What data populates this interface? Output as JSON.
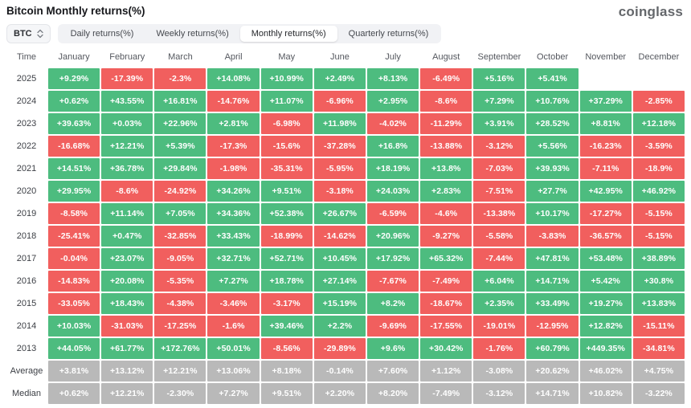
{
  "page": {
    "title": "Bitcoin Monthly returns(%)",
    "logo": "coinglass"
  },
  "toolbar": {
    "symbol_selector": "BTC",
    "tabs": [
      {
        "label": "Daily returns(%)",
        "active": false
      },
      {
        "label": "Weekly returns(%)",
        "active": false
      },
      {
        "label": "Monthly returns(%)",
        "active": true
      },
      {
        "label": "Quarterly returns(%)",
        "active": false
      }
    ]
  },
  "colors": {
    "positive": "#4dbc7f",
    "negative": "#f15f5e",
    "summary": "#b9b9b9"
  },
  "table": {
    "columns": [
      "Time",
      "January",
      "February",
      "March",
      "April",
      "May",
      "June",
      "July",
      "August",
      "September",
      "October",
      "November",
      "December"
    ],
    "rows": [
      {
        "label": "2025",
        "summary": false,
        "values": [
          "+9.29%",
          "-17.39%",
          "-2.3%",
          "+14.08%",
          "+10.99%",
          "+2.49%",
          "+8.13%",
          "-6.49%",
          "+5.16%",
          "+5.41%",
          "",
          ""
        ]
      },
      {
        "label": "2024",
        "summary": false,
        "values": [
          "+0.62%",
          "+43.55%",
          "+16.81%",
          "-14.76%",
          "+11.07%",
          "-6.96%",
          "+2.95%",
          "-8.6%",
          "+7.29%",
          "+10.76%",
          "+37.29%",
          "-2.85%"
        ]
      },
      {
        "label": "2023",
        "summary": false,
        "values": [
          "+39.63%",
          "+0.03%",
          "+22.96%",
          "+2.81%",
          "-6.98%",
          "+11.98%",
          "-4.02%",
          "-11.29%",
          "+3.91%",
          "+28.52%",
          "+8.81%",
          "+12.18%"
        ]
      },
      {
        "label": "2022",
        "summary": false,
        "values": [
          "-16.68%",
          "+12.21%",
          "+5.39%",
          "-17.3%",
          "-15.6%",
          "-37.28%",
          "+16.8%",
          "-13.88%",
          "-3.12%",
          "+5.56%",
          "-16.23%",
          "-3.59%"
        ]
      },
      {
        "label": "2021",
        "summary": false,
        "values": [
          "+14.51%",
          "+36.78%",
          "+29.84%",
          "-1.98%",
          "-35.31%",
          "-5.95%",
          "+18.19%",
          "+13.8%",
          "-7.03%",
          "+39.93%",
          "-7.11%",
          "-18.9%"
        ]
      },
      {
        "label": "2020",
        "summary": false,
        "values": [
          "+29.95%",
          "-8.6%",
          "-24.92%",
          "+34.26%",
          "+9.51%",
          "-3.18%",
          "+24.03%",
          "+2.83%",
          "-7.51%",
          "+27.7%",
          "+42.95%",
          "+46.92%"
        ]
      },
      {
        "label": "2019",
        "summary": false,
        "values": [
          "-8.58%",
          "+11.14%",
          "+7.05%",
          "+34.36%",
          "+52.38%",
          "+26.67%",
          "-6.59%",
          "-4.6%",
          "-13.38%",
          "+10.17%",
          "-17.27%",
          "-5.15%"
        ]
      },
      {
        "label": "2018",
        "summary": false,
        "values": [
          "-25.41%",
          "+0.47%",
          "-32.85%",
          "+33.43%",
          "-18.99%",
          "-14.62%",
          "+20.96%",
          "-9.27%",
          "-5.58%",
          "-3.83%",
          "-36.57%",
          "-5.15%"
        ]
      },
      {
        "label": "2017",
        "summary": false,
        "values": [
          "-0.04%",
          "+23.07%",
          "-9.05%",
          "+32.71%",
          "+52.71%",
          "+10.45%",
          "+17.92%",
          "+65.32%",
          "-7.44%",
          "+47.81%",
          "+53.48%",
          "+38.89%"
        ]
      },
      {
        "label": "2016",
        "summary": false,
        "values": [
          "-14.83%",
          "+20.08%",
          "-5.35%",
          "+7.27%",
          "+18.78%",
          "+27.14%",
          "-7.67%",
          "-7.49%",
          "+6.04%",
          "+14.71%",
          "+5.42%",
          "+30.8%"
        ]
      },
      {
        "label": "2015",
        "summary": false,
        "values": [
          "-33.05%",
          "+18.43%",
          "-4.38%",
          "-3.46%",
          "-3.17%",
          "+15.19%",
          "+8.2%",
          "-18.67%",
          "+2.35%",
          "+33.49%",
          "+19.27%",
          "+13.83%"
        ]
      },
      {
        "label": "2014",
        "summary": false,
        "values": [
          "+10.03%",
          "-31.03%",
          "-17.25%",
          "-1.6%",
          "+39.46%",
          "+2.2%",
          "-9.69%",
          "-17.55%",
          "-19.01%",
          "-12.95%",
          "+12.82%",
          "-15.11%"
        ]
      },
      {
        "label": "2013",
        "summary": false,
        "values": [
          "+44.05%",
          "+61.77%",
          "+172.76%",
          "+50.01%",
          "-8.56%",
          "-29.89%",
          "+9.6%",
          "+30.42%",
          "-1.76%",
          "+60.79%",
          "+449.35%",
          "-34.81%"
        ]
      },
      {
        "label": "Average",
        "summary": true,
        "values": [
          "+3.81%",
          "+13.12%",
          "+12.21%",
          "+13.06%",
          "+8.18%",
          "-0.14%",
          "+7.60%",
          "+1.12%",
          "-3.08%",
          "+20.62%",
          "+46.02%",
          "+4.75%"
        ]
      },
      {
        "label": "Median",
        "summary": true,
        "values": [
          "+0.62%",
          "+12.21%",
          "-2.30%",
          "+7.27%",
          "+9.51%",
          "+2.20%",
          "+8.20%",
          "-7.49%",
          "-3.12%",
          "+14.71%",
          "+10.82%",
          "-3.22%"
        ]
      }
    ]
  },
  "chart_data": {
    "type": "heatmap",
    "title": "Bitcoin Monthly returns(%)",
    "x_categories": [
      "January",
      "February",
      "March",
      "April",
      "May",
      "June",
      "July",
      "August",
      "September",
      "October",
      "November",
      "December"
    ],
    "y_categories": [
      "2025",
      "2024",
      "2023",
      "2022",
      "2021",
      "2020",
      "2019",
      "2018",
      "2017",
      "2016",
      "2015",
      "2014",
      "2013",
      "Average",
      "Median"
    ],
    "values_pct": [
      [
        9.29,
        -17.39,
        -2.3,
        14.08,
        10.99,
        2.49,
        8.13,
        -6.49,
        5.16,
        5.41,
        null,
        null
      ],
      [
        0.62,
        43.55,
        16.81,
        -14.76,
        11.07,
        -6.96,
        2.95,
        -8.6,
        7.29,
        10.76,
        37.29,
        -2.85
      ],
      [
        39.63,
        0.03,
        22.96,
        2.81,
        -6.98,
        11.98,
        -4.02,
        -11.29,
        3.91,
        28.52,
        8.81,
        12.18
      ],
      [
        -16.68,
        12.21,
        5.39,
        -17.3,
        -15.6,
        -37.28,
        16.8,
        -13.88,
        -3.12,
        5.56,
        -16.23,
        -3.59
      ],
      [
        14.51,
        36.78,
        29.84,
        -1.98,
        -35.31,
        -5.95,
        18.19,
        13.8,
        -7.03,
        39.93,
        -7.11,
        -18.9
      ],
      [
        29.95,
        -8.6,
        -24.92,
        34.26,
        9.51,
        -3.18,
        24.03,
        2.83,
        -7.51,
        27.7,
        42.95,
        46.92
      ],
      [
        -8.58,
        11.14,
        7.05,
        34.36,
        52.38,
        26.67,
        -6.59,
        -4.6,
        -13.38,
        10.17,
        -17.27,
        -5.15
      ],
      [
        -25.41,
        0.47,
        -32.85,
        33.43,
        -18.99,
        -14.62,
        20.96,
        -9.27,
        -5.58,
        -3.83,
        -36.57,
        -5.15
      ],
      [
        -0.04,
        23.07,
        -9.05,
        32.71,
        52.71,
        10.45,
        17.92,
        65.32,
        -7.44,
        47.81,
        53.48,
        38.89
      ],
      [
        -14.83,
        20.08,
        -5.35,
        7.27,
        18.78,
        27.14,
        -7.67,
        -7.49,
        6.04,
        14.71,
        5.42,
        30.8
      ],
      [
        -33.05,
        18.43,
        -4.38,
        -3.46,
        -3.17,
        15.19,
        8.2,
        -18.67,
        2.35,
        33.49,
        19.27,
        13.83
      ],
      [
        10.03,
        -31.03,
        -17.25,
        -1.6,
        39.46,
        2.2,
        -9.69,
        -17.55,
        -19.01,
        -12.95,
        12.82,
        -15.11
      ],
      [
        44.05,
        61.77,
        172.76,
        50.01,
        -8.56,
        -29.89,
        9.6,
        30.42,
        -1.76,
        60.79,
        449.35,
        -34.81
      ],
      [
        3.81,
        13.12,
        12.21,
        13.06,
        8.18,
        -0.14,
        7.6,
        1.12,
        -3.08,
        20.62,
        46.02,
        4.75
      ],
      [
        0.62,
        12.21,
        -2.3,
        7.27,
        9.51,
        2.2,
        8.2,
        -7.49,
        -3.12,
        14.71,
        10.82,
        -3.22
      ]
    ],
    "legend": "green = positive return, red = negative return, gray = summary rows"
  }
}
